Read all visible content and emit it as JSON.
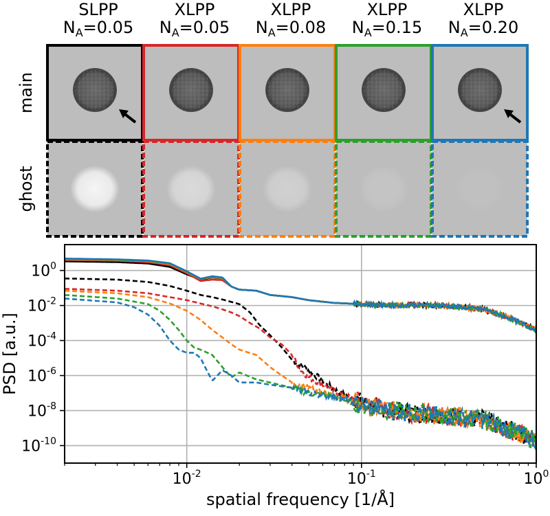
{
  "panels": {
    "columns": [
      {
        "method": "SLPP",
        "na_label": "N",
        "na_sub": "A",
        "na_value": "=0.05",
        "color": "#000000",
        "arrow": true
      },
      {
        "method": "XLPP",
        "na_label": "N",
        "na_sub": "A",
        "na_value": "=0.05",
        "color": "#d62728",
        "arrow": false
      },
      {
        "method": "XLPP",
        "na_label": "N",
        "na_sub": "A",
        "na_value": "=0.08",
        "color": "#ff7f0e",
        "arrow": false
      },
      {
        "method": "XLPP",
        "na_label": "N",
        "na_sub": "A",
        "na_value": "=0.15",
        "color": "#2ca02c",
        "arrow": false
      },
      {
        "method": "XLPP",
        "na_label": "N",
        "na_sub": "A",
        "na_value": "=0.20",
        "color": "#1f77b4",
        "arrow": true
      }
    ],
    "rows": [
      {
        "label": "main",
        "border": "solid"
      },
      {
        "label": "ghost",
        "border": "dashed"
      }
    ],
    "ghost_intensity": [
      0.85,
      0.45,
      0.3,
      0.12,
      0.05
    ]
  },
  "chart_data": {
    "type": "line",
    "x_scale": "log",
    "y_scale": "log",
    "xlabel": "spatial frequency [1/Å]",
    "ylabel": "PSD [a.u.]",
    "xlim": [
      0.002,
      1.0
    ],
    "ylim": [
      1e-11,
      30
    ],
    "x_ticks": [
      {
        "value": 0.01,
        "base": "10",
        "exp": "-2"
      },
      {
        "value": 0.1,
        "base": "10",
        "exp": "-1"
      },
      {
        "value": 1.0,
        "base": "10",
        "exp": "0"
      }
    ],
    "y_ticks": [
      {
        "value": 1,
        "base": "10",
        "exp": "0"
      },
      {
        "value": 0.01,
        "base": "10",
        "exp": "-2"
      },
      {
        "value": 0.0001,
        "base": "10",
        "exp": "-4"
      },
      {
        "value": 1e-06,
        "base": "10",
        "exp": "-6"
      },
      {
        "value": 1e-08,
        "base": "10",
        "exp": "-8"
      },
      {
        "value": 1e-10,
        "base": "10",
        "exp": "-10"
      }
    ],
    "grid": true,
    "series": [
      {
        "name": "SLPP N_A=0.05 main",
        "color": "#000000",
        "style": "solid",
        "points": [
          [
            0.002,
            3.3
          ],
          [
            0.004,
            3.0
          ],
          [
            0.006,
            2.5
          ],
          [
            0.008,
            1.6
          ],
          [
            0.01,
            0.6
          ],
          [
            0.012,
            0.3
          ],
          [
            0.014,
            0.4
          ],
          [
            0.016,
            0.35
          ],
          [
            0.018,
            0.12
          ],
          [
            0.02,
            0.08
          ],
          [
            0.025,
            0.07
          ],
          [
            0.03,
            0.04
          ],
          [
            0.04,
            0.03
          ],
          [
            0.05,
            0.02
          ],
          [
            0.07,
            0.014
          ],
          [
            0.1,
            0.012
          ],
          [
            0.15,
            0.01
          ],
          [
            0.2,
            0.011
          ],
          [
            0.3,
            0.01
          ],
          [
            0.5,
            0.006
          ],
          [
            0.7,
            0.002
          ],
          [
            1.0,
            0.0004
          ]
        ]
      },
      {
        "name": "XLPP N_A=0.05 main",
        "color": "#d62728",
        "style": "solid",
        "points": [
          [
            0.002,
            4.0
          ],
          [
            0.004,
            3.6
          ],
          [
            0.006,
            3.0
          ],
          [
            0.008,
            2.0
          ],
          [
            0.01,
            0.7
          ],
          [
            0.012,
            0.25
          ],
          [
            0.014,
            0.3
          ],
          [
            0.016,
            0.28
          ],
          [
            0.018,
            0.12
          ],
          [
            0.02,
            0.08
          ],
          [
            0.025,
            0.07
          ],
          [
            0.03,
            0.04
          ],
          [
            0.04,
            0.03
          ],
          [
            0.05,
            0.02
          ],
          [
            0.07,
            0.014
          ],
          [
            0.1,
            0.012
          ],
          [
            0.15,
            0.01
          ],
          [
            0.2,
            0.011
          ],
          [
            0.3,
            0.01
          ],
          [
            0.5,
            0.006
          ],
          [
            0.7,
            0.002
          ],
          [
            1.0,
            0.0004
          ]
        ]
      },
      {
        "name": "XLPP N_A=0.08 main",
        "color": "#ff7f0e",
        "style": "solid",
        "points": [
          [
            0.002,
            4.2
          ],
          [
            0.004,
            3.9
          ],
          [
            0.006,
            3.3
          ],
          [
            0.008,
            2.3
          ],
          [
            0.01,
            0.8
          ],
          [
            0.012,
            0.32
          ],
          [
            0.014,
            0.42
          ],
          [
            0.016,
            0.36
          ],
          [
            0.018,
            0.12
          ],
          [
            0.02,
            0.08
          ],
          [
            0.025,
            0.07
          ],
          [
            0.03,
            0.04
          ],
          [
            0.04,
            0.03
          ],
          [
            0.05,
            0.02
          ],
          [
            0.07,
            0.014
          ],
          [
            0.1,
            0.012
          ],
          [
            0.15,
            0.01
          ],
          [
            0.2,
            0.011
          ],
          [
            0.3,
            0.01
          ],
          [
            0.5,
            0.006
          ],
          [
            0.7,
            0.002
          ],
          [
            1.0,
            0.0004
          ]
        ]
      },
      {
        "name": "XLPP N_A=0.15 main",
        "color": "#2ca02c",
        "style": "solid",
        "points": [
          [
            0.002,
            4.5
          ],
          [
            0.004,
            4.1
          ],
          [
            0.006,
            3.5
          ],
          [
            0.008,
            2.5
          ],
          [
            0.01,
            0.85
          ],
          [
            0.012,
            0.33
          ],
          [
            0.014,
            0.45
          ],
          [
            0.016,
            0.38
          ],
          [
            0.018,
            0.12
          ],
          [
            0.02,
            0.08
          ],
          [
            0.025,
            0.07
          ],
          [
            0.03,
            0.04
          ],
          [
            0.04,
            0.03
          ],
          [
            0.05,
            0.02
          ],
          [
            0.07,
            0.014
          ],
          [
            0.1,
            0.012
          ],
          [
            0.15,
            0.01
          ],
          [
            0.2,
            0.011
          ],
          [
            0.3,
            0.01
          ],
          [
            0.5,
            0.006
          ],
          [
            0.7,
            0.002
          ],
          [
            1.0,
            0.0004
          ]
        ]
      },
      {
        "name": "XLPP N_A=0.20 main",
        "color": "#1f77b4",
        "style": "solid",
        "points": [
          [
            0.002,
            4.8
          ],
          [
            0.004,
            4.3
          ],
          [
            0.006,
            3.7
          ],
          [
            0.008,
            2.6
          ],
          [
            0.01,
            0.9
          ],
          [
            0.012,
            0.34
          ],
          [
            0.014,
            0.47
          ],
          [
            0.016,
            0.4
          ],
          [
            0.018,
            0.12
          ],
          [
            0.02,
            0.08
          ],
          [
            0.025,
            0.07
          ],
          [
            0.03,
            0.04
          ],
          [
            0.04,
            0.03
          ],
          [
            0.05,
            0.02
          ],
          [
            0.07,
            0.014
          ],
          [
            0.1,
            0.012
          ],
          [
            0.15,
            0.01
          ],
          [
            0.2,
            0.011
          ],
          [
            0.3,
            0.01
          ],
          [
            0.5,
            0.006
          ],
          [
            0.7,
            0.002
          ],
          [
            1.0,
            0.0004
          ]
        ]
      },
      {
        "name": "SLPP N_A=0.05 ghost",
        "color": "#000000",
        "style": "dashed",
        "points": [
          [
            0.002,
            0.35
          ],
          [
            0.004,
            0.3
          ],
          [
            0.006,
            0.22
          ],
          [
            0.008,
            0.13
          ],
          [
            0.01,
            0.07
          ],
          [
            0.012,
            0.04
          ],
          [
            0.014,
            0.03
          ],
          [
            0.016,
            0.022
          ],
          [
            0.018,
            0.016
          ],
          [
            0.02,
            0.012
          ],
          [
            0.023,
            0.004
          ],
          [
            0.026,
            0.0008
          ],
          [
            0.03,
            0.0002
          ],
          [
            0.035,
            4e-05
          ],
          [
            0.04,
            8e-06
          ],
          [
            0.05,
            2e-06
          ],
          [
            0.06,
            5e-07
          ],
          [
            0.07,
            1.5e-07
          ],
          [
            0.1,
            3e-08
          ],
          [
            0.15,
            1e-08
          ],
          [
            0.3,
            5e-09
          ],
          [
            0.5,
            3e-09
          ],
          [
            1.0,
            2e-10
          ]
        ]
      },
      {
        "name": "XLPP N_A=0.05 ghost",
        "color": "#d62728",
        "style": "dashed",
        "points": [
          [
            0.002,
            0.09
          ],
          [
            0.004,
            0.07
          ],
          [
            0.006,
            0.05
          ],
          [
            0.008,
            0.03
          ],
          [
            0.01,
            0.02
          ],
          [
            0.012,
            0.013
          ],
          [
            0.014,
            0.009
          ],
          [
            0.016,
            0.006
          ],
          [
            0.018,
            0.004
          ],
          [
            0.02,
            0.0025
          ],
          [
            0.023,
            0.001
          ],
          [
            0.026,
            0.0005
          ],
          [
            0.03,
            0.00015
          ],
          [
            0.035,
            6e-05
          ],
          [
            0.04,
            1.5e-05
          ],
          [
            0.045,
            2e-06
          ],
          [
            0.05,
            8e-07
          ],
          [
            0.06,
            3e-07
          ],
          [
            0.07,
            1.2e-07
          ],
          [
            0.1,
            3e-08
          ],
          [
            0.15,
            1e-08
          ],
          [
            0.3,
            5e-09
          ],
          [
            0.5,
            3e-09
          ],
          [
            1.0,
            2e-10
          ]
        ]
      },
      {
        "name": "XLPP N_A=0.08 ghost",
        "color": "#ff7f0e",
        "style": "dashed",
        "points": [
          [
            0.002,
            0.07
          ],
          [
            0.004,
            0.05
          ],
          [
            0.006,
            0.03
          ],
          [
            0.008,
            0.013
          ],
          [
            0.01,
            0.005
          ],
          [
            0.012,
            0.0015
          ],
          [
            0.014,
            0.0004
          ],
          [
            0.016,
            0.00015
          ],
          [
            0.018,
            6e-05
          ],
          [
            0.02,
            3e-05
          ],
          [
            0.025,
            1.5e-05
          ],
          [
            0.03,
            3e-06
          ],
          [
            0.035,
            1e-06
          ],
          [
            0.04,
            4e-07
          ],
          [
            0.05,
            2e-07
          ],
          [
            0.07,
            8e-08
          ],
          [
            0.1,
            2e-08
          ],
          [
            0.15,
            1e-08
          ],
          [
            0.3,
            5e-09
          ],
          [
            0.5,
            3e-09
          ],
          [
            1.0,
            2e-10
          ]
        ]
      },
      {
        "name": "XLPP N_A=0.15 ghost",
        "color": "#2ca02c",
        "style": "dashed",
        "points": [
          [
            0.002,
            0.04
          ],
          [
            0.004,
            0.025
          ],
          [
            0.006,
            0.012
          ],
          [
            0.007,
            0.005
          ],
          [
            0.008,
            0.0015
          ],
          [
            0.009,
            0.0004
          ],
          [
            0.01,
            0.0001
          ],
          [
            0.011,
            4e-05
          ],
          [
            0.012,
            3e-05
          ],
          [
            0.014,
            1.5e-05
          ],
          [
            0.016,
            3e-06
          ],
          [
            0.018,
            8e-07
          ],
          [
            0.02,
            1.5e-06
          ],
          [
            0.025,
            6e-07
          ],
          [
            0.03,
            4e-07
          ],
          [
            0.04,
            2e-07
          ],
          [
            0.05,
            1e-07
          ],
          [
            0.07,
            6e-08
          ],
          [
            0.1,
            2e-08
          ],
          [
            0.15,
            1e-08
          ],
          [
            0.3,
            5e-09
          ],
          [
            0.5,
            3e-09
          ],
          [
            1.0,
            2e-10
          ]
        ]
      },
      {
        "name": "XLPP N_A=0.20 ghost",
        "color": "#1f77b4",
        "style": "dashed",
        "points": [
          [
            0.002,
            0.025
          ],
          [
            0.004,
            0.015
          ],
          [
            0.005,
            0.008
          ],
          [
            0.006,
            0.003
          ],
          [
            0.007,
            0.0007
          ],
          [
            0.008,
            0.0001
          ],
          [
            0.009,
            3e-05
          ],
          [
            0.01,
            2e-05
          ],
          [
            0.011,
            2e-05
          ],
          [
            0.012,
            1e-05
          ],
          [
            0.013,
            2e-06
          ],
          [
            0.014,
            5e-07
          ],
          [
            0.016,
            2e-06
          ],
          [
            0.018,
            1e-06
          ],
          [
            0.02,
            4e-07
          ],
          [
            0.025,
            4e-07
          ],
          [
            0.03,
            3e-07
          ],
          [
            0.04,
            2e-07
          ],
          [
            0.05,
            1e-07
          ],
          [
            0.07,
            6e-08
          ],
          [
            0.1,
            2e-08
          ],
          [
            0.15,
            1e-08
          ],
          [
            0.3,
            5e-09
          ],
          [
            0.5,
            3e-09
          ],
          [
            1.0,
            2e-10
          ]
        ]
      }
    ]
  }
}
